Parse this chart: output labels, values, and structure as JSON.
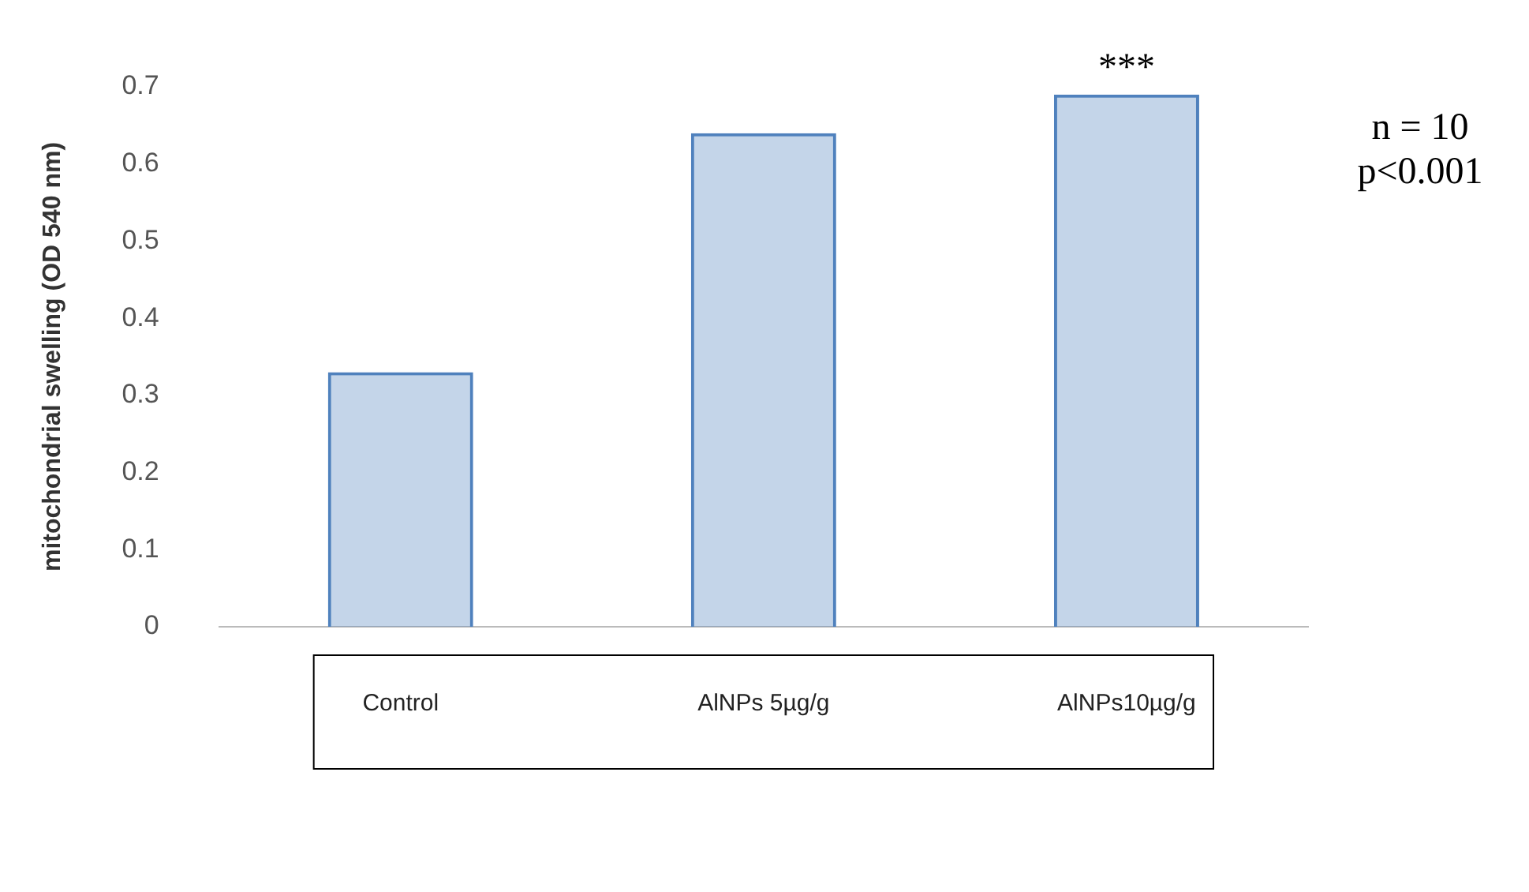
{
  "chart_data": {
    "type": "bar",
    "ylabel": "mitochondrial swelling (OD 540 nm)",
    "categories": [
      "Control",
      "AlNPs 5µg/g",
      "AlNPs10µg/g"
    ],
    "values": [
      0.33,
      0.64,
      0.69
    ],
    "color": "#4f81bd",
    "ylim": [
      0,
      0.7
    ],
    "yticks": [
      0,
      0.1,
      0.2,
      0.3,
      0.4,
      0.5,
      0.6,
      0.7
    ],
    "grid": false,
    "annotations": [
      {
        "text": "***",
        "x": "AlNPs10µg/g",
        "y": 0.69
      },
      "n = 10",
      "p<0.001"
    ]
  }
}
